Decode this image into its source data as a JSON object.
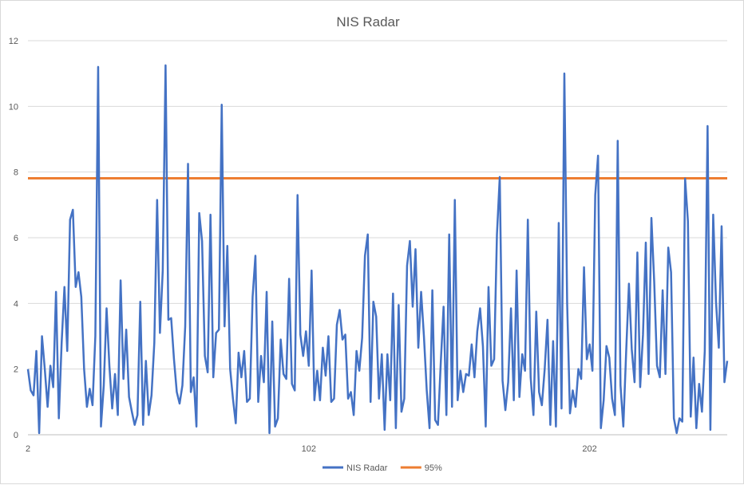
{
  "chart_data": {
    "type": "line",
    "title": "NIS Radar",
    "xlabel": "",
    "ylabel": "",
    "x_start": 2,
    "x_ticks": [
      2,
      102,
      202,
      302,
      402
    ],
    "ylim": [
      0,
      12
    ],
    "y_ticks": [
      0,
      2,
      4,
      6,
      8,
      10,
      12
    ],
    "grid": "horizontal",
    "legend_position": "bottom",
    "series": [
      {
        "name": "NIS Radar",
        "color": "#4472C4",
        "values": [
          2.0,
          1.35,
          1.2,
          2.55,
          0.05,
          3.0,
          2.0,
          0.85,
          2.1,
          1.45,
          4.35,
          0.5,
          2.8,
          4.5,
          2.55,
          6.55,
          6.85,
          4.5,
          4.95,
          4.2,
          2.0,
          0.85,
          1.4,
          0.9,
          3.0,
          11.2,
          0.25,
          1.5,
          3.85,
          2.1,
          0.8,
          1.85,
          0.6,
          4.7,
          1.7,
          3.2,
          1.15,
          0.7,
          0.3,
          0.6,
          4.05,
          0.3,
          2.25,
          0.6,
          1.2,
          2.8,
          7.15,
          3.1,
          5.0,
          11.25,
          3.5,
          3.55,
          2.3,
          1.3,
          0.95,
          1.5,
          3.3,
          8.25,
          1.3,
          1.75,
          0.25,
          6.75,
          5.9,
          2.4,
          1.9,
          6.7,
          1.75,
          3.1,
          3.2,
          10.05,
          3.3,
          5.75,
          2.0,
          1.1,
          0.35,
          2.5,
          1.75,
          2.55,
          1.0,
          1.1,
          4.2,
          5.45,
          1.0,
          2.4,
          1.6,
          4.35,
          0.05,
          3.45,
          0.25,
          0.5,
          2.9,
          1.85,
          1.7,
          4.75,
          1.55,
          1.35,
          7.3,
          3.05,
          2.4,
          3.15,
          2.1,
          5.0,
          1.05,
          1.95,
          1.05,
          2.65,
          1.8,
          3.0,
          1.0,
          1.1,
          3.35,
          3.8,
          2.9,
          3.05,
          1.1,
          1.3,
          0.6,
          2.55,
          1.95,
          2.95,
          5.45,
          6.1,
          1.0,
          4.05,
          3.6,
          1.1,
          2.45,
          0.15,
          2.45,
          1.05,
          4.3,
          0.2,
          3.95,
          0.7,
          1.1,
          5.15,
          5.9,
          3.9,
          5.65,
          2.65,
          4.35,
          3.0,
          1.35,
          0.2,
          4.4,
          0.45,
          0.3,
          2.2,
          3.9,
          0.6,
          6.1,
          0.85,
          7.15,
          1.05,
          1.95,
          1.3,
          1.85,
          1.8,
          2.75,
          1.75,
          3.15,
          3.85,
          2.7,
          0.25,
          4.5,
          2.1,
          2.3,
          6.1,
          7.85,
          1.65,
          0.75,
          1.6,
          3.85,
          1.05,
          5.0,
          1.15,
          2.45,
          1.95,
          6.55,
          1.75,
          0.6,
          3.75,
          1.3,
          0.9,
          2.0,
          3.5,
          0.3,
          2.85,
          0.25,
          6.45,
          0.8,
          11.0,
          4.0,
          0.65,
          1.35,
          0.85,
          2.0,
          1.7,
          5.1,
          2.3,
          2.75,
          1.95,
          7.3,
          8.5,
          0.2,
          1.05,
          2.7,
          2.35,
          1.1,
          0.6,
          8.95,
          1.5,
          0.25,
          2.5,
          4.6,
          2.6,
          1.6,
          5.55,
          1.45,
          3.05,
          5.85,
          1.85,
          6.6,
          4.65,
          2.1,
          1.75,
          4.4,
          1.85,
          5.7,
          4.95,
          0.5,
          0.05,
          0.5,
          0.4,
          7.8,
          6.5,
          0.55,
          2.35,
          0.2,
          1.55,
          0.7,
          2.55,
          9.4,
          0.15,
          6.7,
          4.05,
          2.65,
          6.35,
          1.6,
          2.25
        ]
      },
      {
        "name": "95%",
        "color": "#ED7D31",
        "constant": 7.81
      }
    ]
  }
}
